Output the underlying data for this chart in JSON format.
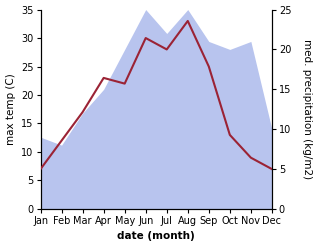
{
  "months": [
    "Jan",
    "Feb",
    "Mar",
    "Apr",
    "May",
    "Jun",
    "Jul",
    "Aug",
    "Sep",
    "Oct",
    "Nov",
    "Dec"
  ],
  "temperature": [
    7,
    12,
    17,
    23,
    22,
    30,
    28,
    33,
    25,
    13,
    9,
    7
  ],
  "precipitation": [
    9,
    8,
    12,
    15,
    20,
    25,
    22,
    25,
    21,
    20,
    21,
    10
  ],
  "temp_color": "#9b2335",
  "precip_color": "#b8c4ee",
  "temp_ylim": [
    0,
    35
  ],
  "precip_ylim": [
    0,
    25
  ],
  "temp_yticks": [
    0,
    5,
    10,
    15,
    20,
    25,
    30,
    35
  ],
  "precip_yticks": [
    0,
    5,
    10,
    15,
    20,
    25
  ],
  "xlabel": "date (month)",
  "ylabel_left": "max temp (C)",
  "ylabel_right": "med. precipitation (kg/m2)",
  "bg_color": "#ffffff",
  "label_fontsize": 7.5,
  "tick_fontsize": 7
}
